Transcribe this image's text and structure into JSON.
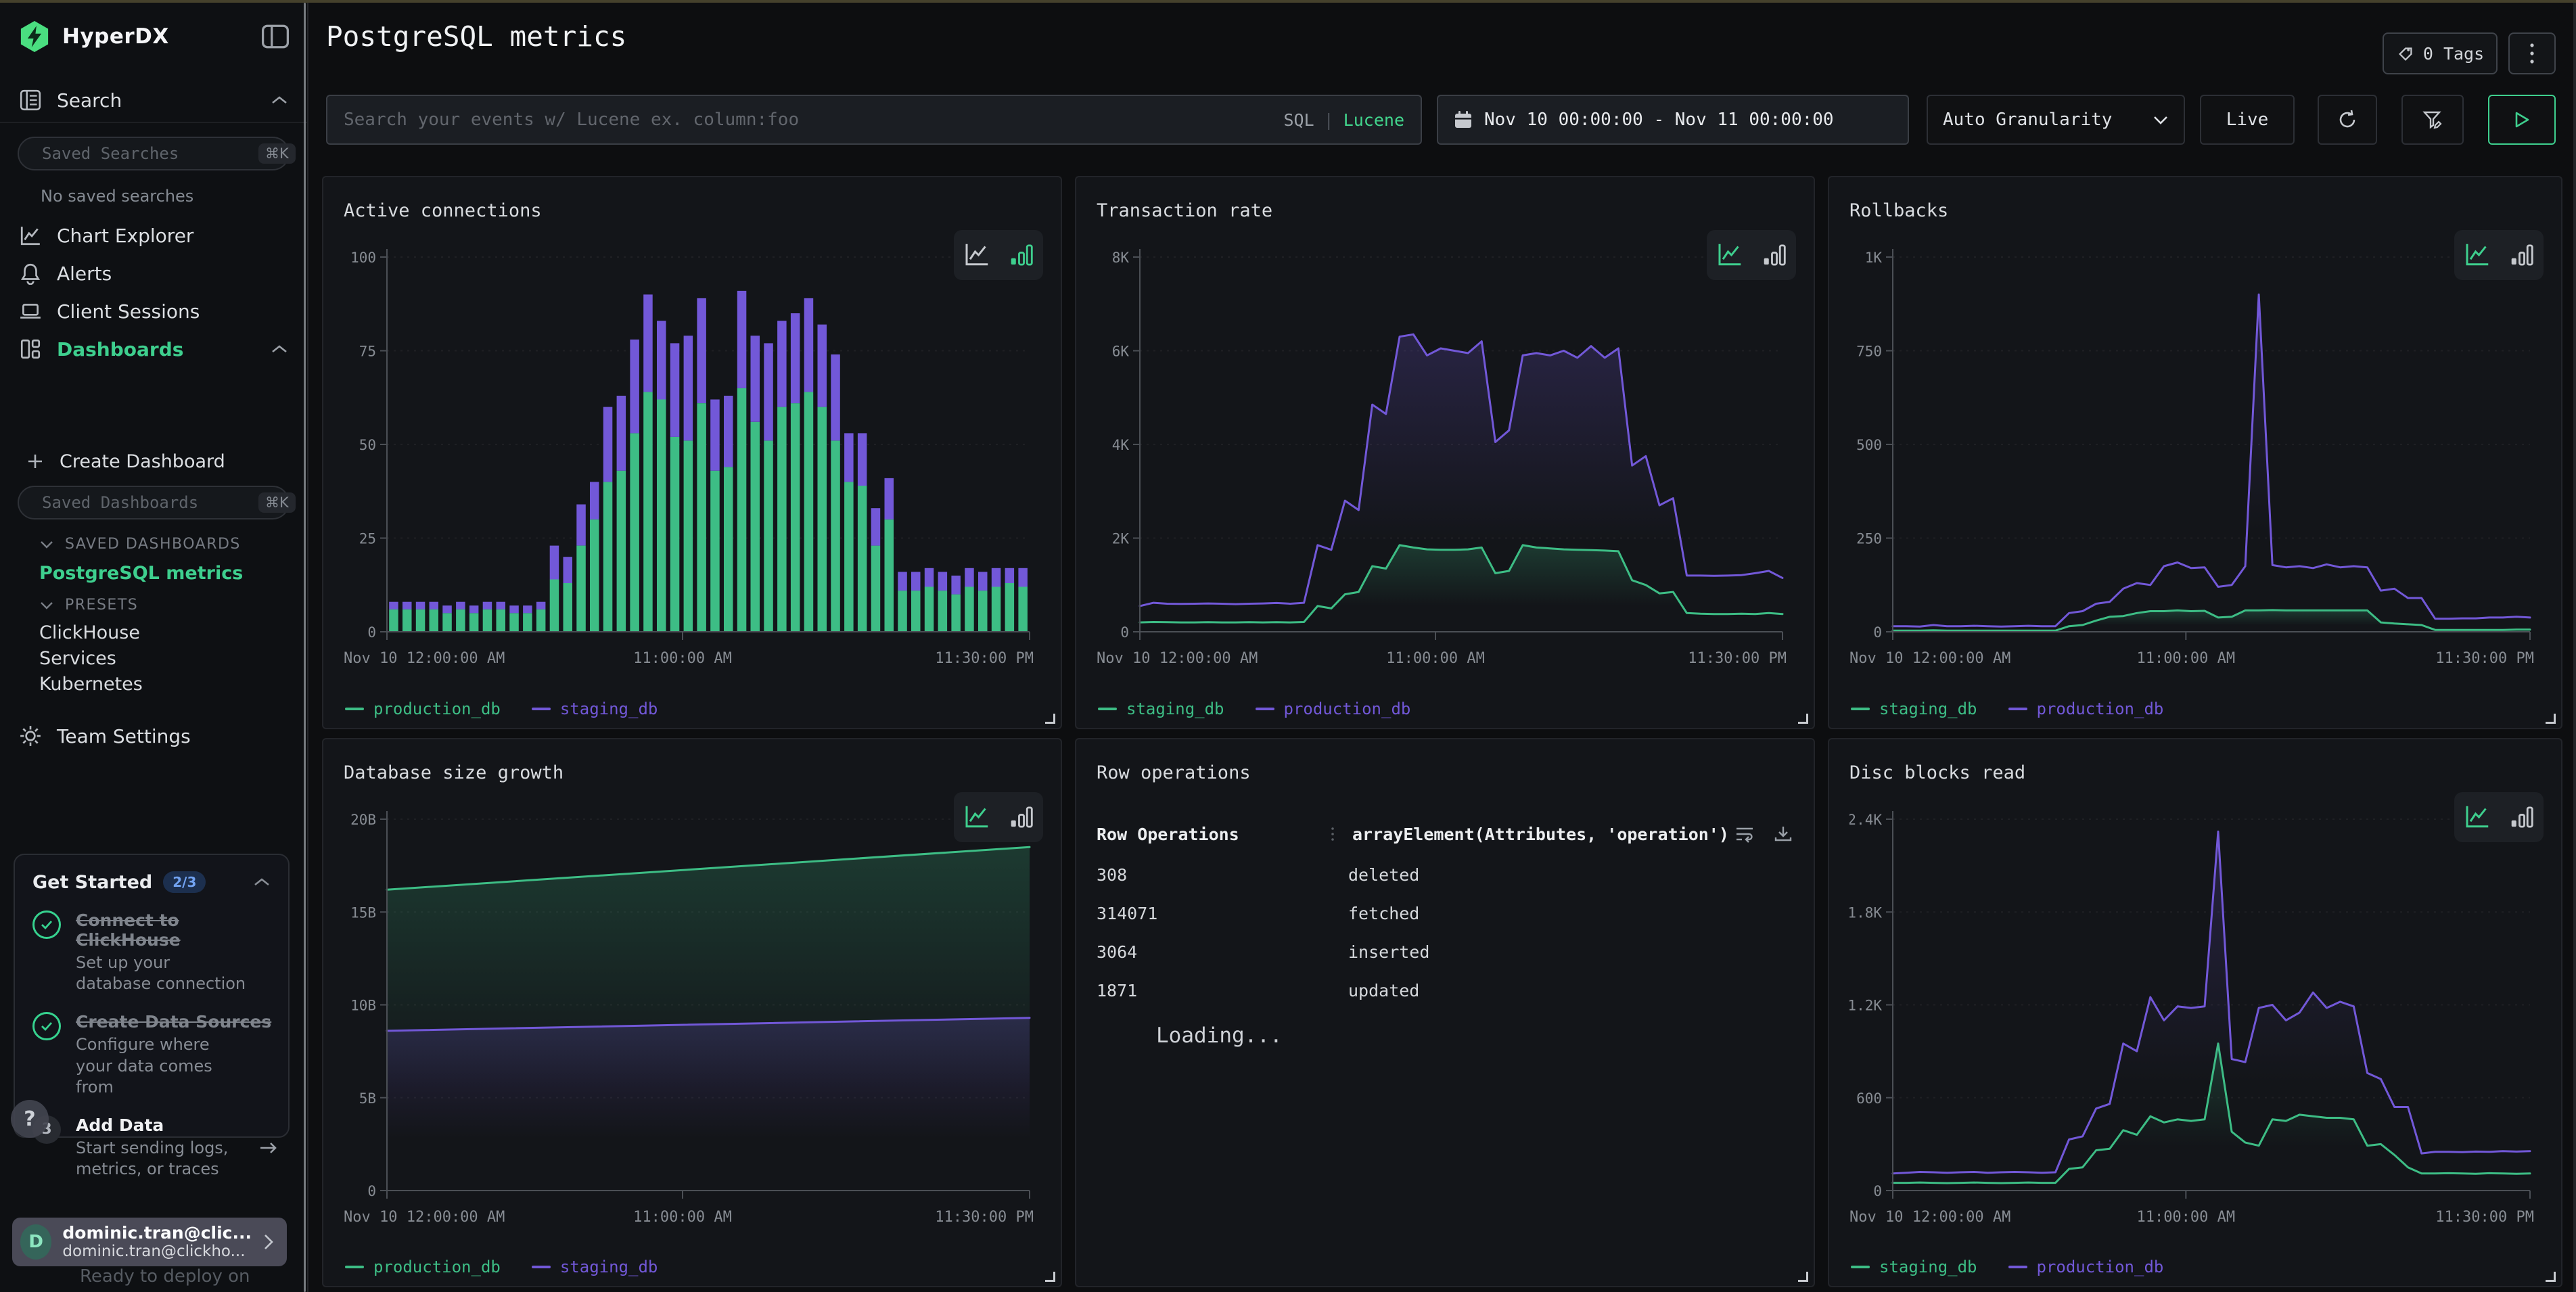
{
  "colors": {
    "accent_green": "#3ecf8e",
    "chart_green": "#3dbd85",
    "chart_purple": "#7258d8",
    "logo_green": "#4ade80",
    "badge_blue_bg": "#1c2f4e",
    "badge_blue_fg": "#72a3f2",
    "panel_bg": "#131519",
    "olive_top_strip": "#45412c"
  },
  "sidebar": {
    "brand": "HyperDX",
    "search_label": "Search",
    "saved_searches_placeholder": "Saved Searches",
    "shortcut": "⌘K",
    "no_saved": "No saved searches",
    "nav": [
      {
        "label": "Chart Explorer"
      },
      {
        "label": "Alerts"
      },
      {
        "label": "Client Sessions"
      },
      {
        "label": "Dashboards",
        "active": true
      }
    ],
    "create_dashboard": "Create Dashboard",
    "saved_dashboards_placeholder": "Saved Dashboards",
    "saved_dashboards_title": "SAVED DASHBOARDS",
    "saved_dashboards": [
      {
        "label": "PostgreSQL metrics",
        "active": true
      }
    ],
    "presets_title": "PRESETS",
    "presets": [
      "ClickHouse",
      "Services",
      "Kubernetes"
    ],
    "team_settings": "Team Settings",
    "get_started": {
      "title": "Get Started",
      "badge": "2/3",
      "items": [
        {
          "title": "Connect to ClickHouse",
          "subtitle": "Set up your database connection",
          "done": true
        },
        {
          "title": "Create Data Sources",
          "subtitle": "Configure where your data comes from",
          "done": true
        },
        {
          "title": "Add Data",
          "subtitle": "Start sending logs, metrics, or traces",
          "done": false,
          "step": "3"
        }
      ]
    },
    "help_label": "?",
    "profile": {
      "initial": "D",
      "name": "dominic.tran@clic...",
      "email": "dominic.tran@clickho..."
    },
    "background_text": "Ready to deploy on"
  },
  "header": {
    "title": "PostgreSQL metrics",
    "tags_button": "0 Tags",
    "search_placeholder": "Search your events w/ Lucene ex. column:foo",
    "sql_label": "SQL",
    "mode_divider": "|",
    "lucene_label": "Lucene",
    "date_range": "Nov 10 00:00:00 - Nov 11 00:00:00",
    "granularity": "Auto Granularity",
    "live_label": "Live"
  },
  "table_panel": {
    "title": "Row operations",
    "col1": "Row Operations",
    "col2": "arrayElement(Attributes, 'operation')",
    "rows": [
      {
        "value": "308",
        "operation": "deleted"
      },
      {
        "value": "314071",
        "operation": "fetched"
      },
      {
        "value": "3064",
        "operation": "inserted"
      },
      {
        "value": "1871",
        "operation": "updated"
      }
    ],
    "loading": "Loading..."
  },
  "chart_data": [
    {
      "type": "bar",
      "stacked": true,
      "active_view": "bar",
      "title": "Active connections",
      "ylim": [
        0,
        100
      ],
      "yticks": [
        {
          "v": 0,
          "label": "0"
        },
        {
          "v": 25,
          "label": "25"
        },
        {
          "v": 50,
          "label": "50"
        },
        {
          "v": 75,
          "label": "75"
        },
        {
          "v": 100,
          "label": "100"
        }
      ],
      "xticks": [
        {
          "p": 0,
          "label": "Nov 10 12:00:00 AM",
          "anchor": "start"
        },
        {
          "p": 0.46,
          "label": "11:00:00 AM",
          "anchor": "middle"
        },
        {
          "p": 1,
          "label": "11:30:00 PM",
          "anchor": "end"
        }
      ],
      "series": [
        {
          "name": "production_db",
          "color": "#3dbd85",
          "values": [
            6,
            6,
            6,
            6,
            5,
            6,
            5,
            6,
            6,
            5,
            5,
            6,
            14,
            13,
            23,
            30,
            40,
            43,
            53,
            64,
            62,
            52,
            51,
            61,
            43,
            44,
            65,
            56,
            51,
            60,
            61,
            64,
            60,
            51,
            40,
            39,
            23,
            30,
            11,
            11,
            12,
            11,
            10,
            12,
            11,
            12,
            13,
            12
          ]
        },
        {
          "name": "staging_db",
          "color": "#7258d8",
          "values": [
            2,
            2,
            2,
            2,
            2,
            2,
            2,
            2,
            2,
            2,
            2,
            2,
            9,
            7,
            11,
            10,
            20,
            20,
            25,
            26,
            21,
            25,
            28,
            28,
            19,
            19,
            26,
            23,
            26,
            23,
            24,
            25,
            22,
            23,
            13,
            14,
            10,
            11,
            5,
            5,
            5,
            5,
            5,
            5,
            5,
            5,
            4,
            5
          ]
        }
      ]
    },
    {
      "type": "line",
      "active_view": "line",
      "title": "Transaction rate",
      "ylim": [
        0,
        8000
      ],
      "yticks": [
        {
          "v": 0,
          "label": "0"
        },
        {
          "v": 2000,
          "label": "2K"
        },
        {
          "v": 4000,
          "label": "4K"
        },
        {
          "v": 6000,
          "label": "6K"
        },
        {
          "v": 8000,
          "label": "8K"
        }
      ],
      "xticks": [
        {
          "p": 0,
          "label": "Nov 10 12:00:00 AM",
          "anchor": "start"
        },
        {
          "p": 0.46,
          "label": "11:00:00 AM",
          "anchor": "middle"
        },
        {
          "p": 1,
          "label": "11:30:00 PM",
          "anchor": "end"
        }
      ],
      "series": [
        {
          "name": "staging_db",
          "color": "#3dbd85",
          "values": [
            200,
            210,
            205,
            200,
            200,
            205,
            200,
            200,
            205,
            200,
            205,
            200,
            210,
            550,
            500,
            800,
            850,
            1400,
            1350,
            1850,
            1800,
            1760,
            1750,
            1750,
            1760,
            1800,
            1250,
            1300,
            1850,
            1800,
            1780,
            1760,
            1750,
            1745,
            1735,
            1720,
            1100,
            1000,
            820,
            850,
            400,
            385,
            380,
            380,
            385,
            380,
            400,
            380
          ]
        },
        {
          "name": "production_db",
          "color": "#7258d8",
          "values": [
            550,
            620,
            600,
            595,
            600,
            605,
            600,
            590,
            600,
            605,
            615,
            600,
            620,
            1850,
            1750,
            2800,
            2600,
            4850,
            4650,
            6300,
            6350,
            5900,
            6050,
            6000,
            5950,
            6200,
            4050,
            4300,
            5900,
            5950,
            5900,
            6000,
            5850,
            6100,
            5850,
            6050,
            3550,
            3750,
            2700,
            2850,
            1200,
            1200,
            1195,
            1200,
            1210,
            1250,
            1300,
            1150
          ]
        }
      ]
    },
    {
      "type": "line",
      "active_view": "line",
      "title": "Rollbacks",
      "ylim": [
        0,
        1000
      ],
      "yticks": [
        {
          "v": 0,
          "label": "0"
        },
        {
          "v": 250,
          "label": "250"
        },
        {
          "v": 500,
          "label": "500"
        },
        {
          "v": 750,
          "label": "750"
        },
        {
          "v": 1000,
          "label": "1K"
        }
      ],
      "xticks": [
        {
          "p": 0,
          "label": "Nov 10 12:00:00 AM",
          "anchor": "start"
        },
        {
          "p": 0.46,
          "label": "11:00:00 AM",
          "anchor": "middle"
        },
        {
          "p": 1,
          "label": "11:30:00 PM",
          "anchor": "end"
        }
      ],
      "series": [
        {
          "name": "staging_db",
          "color": "#3dbd85",
          "values": [
            3,
            3,
            3,
            4,
            3,
            3,
            3,
            3,
            3,
            3,
            3,
            3,
            3,
            15,
            18,
            30,
            40,
            42,
            50,
            55,
            55,
            57,
            55,
            56,
            38,
            40,
            57,
            57,
            58,
            57,
            57,
            57,
            57,
            57,
            57,
            57,
            25,
            22,
            20,
            18,
            5,
            5,
            5,
            5,
            5,
            5,
            6,
            6
          ]
        },
        {
          "name": "production_db",
          "color": "#7258d8",
          "values": [
            15,
            15,
            14,
            18,
            15,
            15,
            16,
            15,
            14,
            15,
            16,
            15,
            15,
            50,
            55,
            75,
            80,
            115,
            130,
            125,
            175,
            185,
            170,
            172,
            120,
            125,
            175,
            900,
            178,
            172,
            175,
            170,
            180,
            172,
            175,
            172,
            110,
            115,
            90,
            90,
            35,
            35,
            36,
            36,
            38,
            38,
            40,
            38
          ]
        }
      ]
    },
    {
      "type": "line",
      "active_view": "line",
      "title": "Database size growth",
      "ylim": [
        0,
        20
      ],
      "yticks": [
        {
          "v": 0,
          "label": "0"
        },
        {
          "v": 5,
          "label": "5B"
        },
        {
          "v": 10,
          "label": "10B"
        },
        {
          "v": 15,
          "label": "15B"
        },
        {
          "v": 20,
          "label": "20B"
        }
      ],
      "xticks": [
        {
          "p": 0,
          "label": "Nov 10 12:00:00 AM",
          "anchor": "start"
        },
        {
          "p": 0.46,
          "label": "11:00:00 AM",
          "anchor": "middle"
        },
        {
          "p": 1,
          "label": "11:30:00 PM",
          "anchor": "end"
        }
      ],
      "series": [
        {
          "name": "production_db",
          "color": "#3dbd85",
          "values": [
            16.2,
            18.5
          ]
        },
        {
          "name": "staging_db",
          "color": "#7258d8",
          "values": [
            8.6,
            9.3
          ]
        }
      ]
    },
    {
      "type": "line",
      "active_view": "line",
      "title": "Disc blocks read",
      "ylim": [
        0,
        2400
      ],
      "yticks": [
        {
          "v": 0,
          "label": "0"
        },
        {
          "v": 600,
          "label": "600"
        },
        {
          "v": 1200,
          "label": "1.2K"
        },
        {
          "v": 1800,
          "label": "1.8K"
        },
        {
          "v": 2400,
          "label": "2.4K"
        }
      ],
      "xticks": [
        {
          "p": 0,
          "label": "Nov 10 12:00:00 AM",
          "anchor": "start"
        },
        {
          "p": 0.46,
          "label": "11:00:00 AM",
          "anchor": "middle"
        },
        {
          "p": 1,
          "label": "11:30:00 PM",
          "anchor": "end"
        }
      ],
      "series": [
        {
          "name": "staging_db",
          "color": "#3dbd85",
          "values": [
            50,
            50,
            52,
            50,
            48,
            50,
            52,
            50,
            48,
            50,
            52,
            50,
            50,
            140,
            150,
            260,
            270,
            390,
            360,
            480,
            440,
            460,
            450,
            460,
            950,
            380,
            310,
            290,
            460,
            450,
            490,
            480,
            470,
            470,
            460,
            290,
            300,
            230,
            150,
            110,
            110,
            112,
            110,
            108,
            112,
            110,
            108,
            110
          ]
        },
        {
          "name": "production_db",
          "color": "#7258d8",
          "values": [
            110,
            115,
            120,
            118,
            115,
            118,
            120,
            115,
            118,
            120,
            118,
            115,
            118,
            330,
            350,
            530,
            560,
            950,
            900,
            1250,
            1100,
            1190,
            1180,
            1190,
            2320,
            850,
            830,
            1180,
            1200,
            1100,
            1150,
            1280,
            1180,
            1220,
            1190,
            760,
            720,
            540,
            540,
            240,
            250,
            250,
            248,
            252,
            250,
            255,
            252,
            255
          ]
        }
      ]
    }
  ]
}
